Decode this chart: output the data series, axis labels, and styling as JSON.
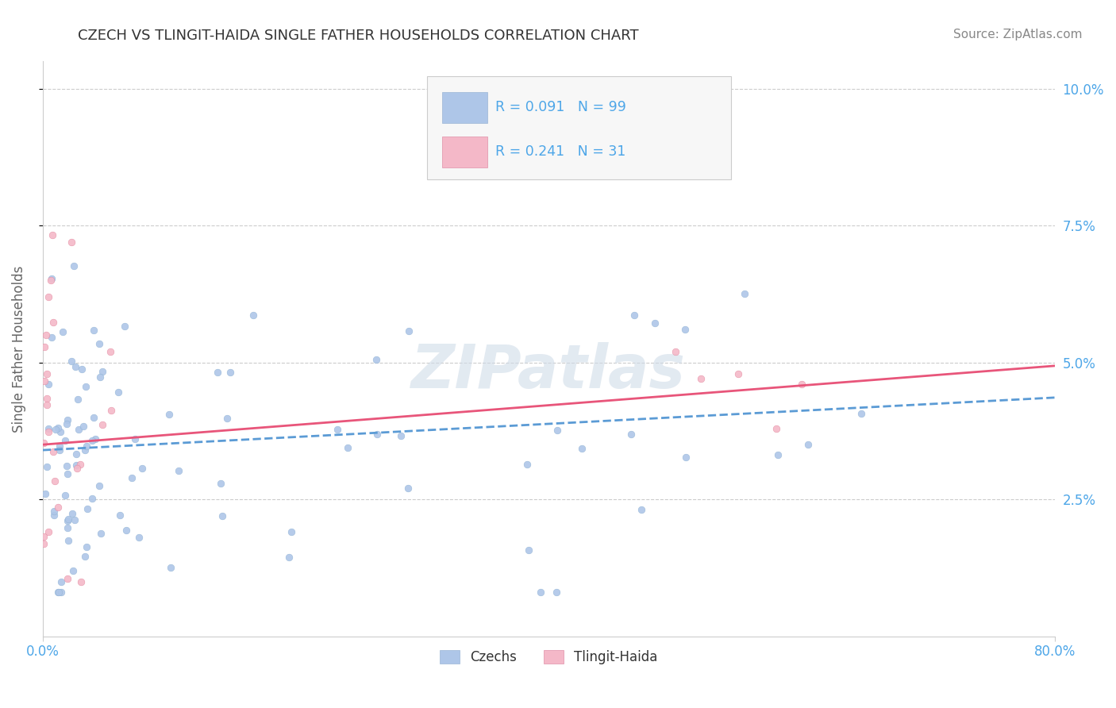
{
  "title": "CZECH VS TLINGIT-HAIDA SINGLE FATHER HOUSEHOLDS CORRELATION CHART",
  "source": "Source: ZipAtlas.com",
  "ylabel": "Single Father Households",
  "xlim": [
    0.0,
    0.8
  ],
  "ylim": [
    0.0,
    0.105
  ],
  "ytick_values": [
    0.025,
    0.05,
    0.075,
    0.1
  ],
  "ytick_labels": [
    "2.5%",
    "5.0%",
    "7.5%",
    "10.0%"
  ],
  "xtick_positions": [
    0.0,
    0.8
  ],
  "xtick_labels": [
    "0.0%",
    "80.0%"
  ],
  "czech_color": "#aec6e8",
  "czech_line_color": "#5b9bd5",
  "tlingit_color": "#f4b8c8",
  "tlingit_line_color": "#e8557a",
  "czech_R": 0.091,
  "czech_N": 99,
  "tlingit_R": 0.241,
  "tlingit_N": 31,
  "background_color": "#ffffff",
  "grid_color": "#cccccc",
  "title_color": "#333333",
  "axis_label_color": "#4da6e8",
  "watermark_color": "#d0dce8",
  "source_color": "#888888"
}
